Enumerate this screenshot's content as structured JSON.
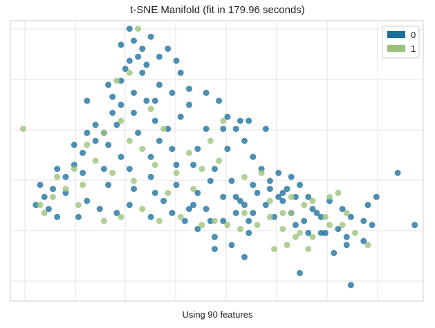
{
  "chart_data": {
    "type": "scatter",
    "title": "t-SNE Manifold (fit in 179.96 seconds)",
    "xlabel": "Using 90 features",
    "ylabel": "",
    "grid": true,
    "legend_position": "top-right",
    "xlim": [
      -53,
      44
    ],
    "ylim": [
      -30,
      40
    ],
    "tick_labels_visible": false,
    "series": [
      {
        "name": "0",
        "color": "#1a6f9c",
        "points": [
          [
            -25,
            38
          ],
          [
            -20,
            36
          ],
          [
            -24,
            35
          ],
          [
            -27,
            34
          ],
          [
            -22,
            33
          ],
          [
            -16,
            33
          ],
          [
            -23,
            31
          ],
          [
            -18,
            31
          ],
          [
            -25,
            30
          ],
          [
            -21,
            29
          ],
          [
            -14,
            30
          ],
          [
            -26,
            28
          ],
          [
            -13,
            27
          ],
          [
            -22,
            27
          ],
          [
            -30,
            24
          ],
          [
            -27,
            25
          ],
          [
            -18,
            24
          ],
          [
            -11,
            23
          ],
          [
            -15,
            22
          ],
          [
            -7,
            22
          ],
          [
            -35,
            20
          ],
          [
            -29,
            21
          ],
          [
            -24,
            22
          ],
          [
            -19,
            20
          ],
          [
            -11,
            19
          ],
          [
            -4,
            20
          ],
          [
            -2,
            16
          ],
          [
            -7,
            13
          ],
          [
            -3,
            13
          ],
          [
            -5,
            3
          ],
          [
            -2,
            8
          ],
          [
            -9,
            8
          ],
          [
            1,
            15
          ],
          [
            1,
            -5
          ],
          [
            -11,
            -7
          ],
          [
            -47,
            -6
          ],
          [
            -45,
            -4
          ],
          [
            -43,
            -2
          ],
          [
            -40,
            1
          ],
          [
            -38,
            4
          ],
          [
            -36,
            7
          ],
          [
            -33,
            10
          ],
          [
            -31,
            12
          ],
          [
            -33,
            14
          ],
          [
            -29,
            17
          ],
          [
            -27,
            19
          ],
          [
            -30,
            9
          ],
          [
            -36,
            2
          ],
          [
            -40,
            -3
          ],
          [
            -44,
            -7
          ],
          [
            -42,
            -9
          ],
          [
            -37,
            -9
          ],
          [
            -32,
            -7
          ],
          [
            -28,
            -8
          ],
          [
            -25,
            -6
          ],
          [
            -20,
            -9
          ],
          [
            -15,
            -8
          ],
          [
            -10,
            -6
          ],
          [
            -6,
            -10
          ],
          [
            -30,
            -1
          ],
          [
            -25,
            3
          ],
          [
            -20,
            6
          ],
          [
            -15,
            8
          ],
          [
            -10,
            4
          ],
          [
            -6,
            0
          ],
          [
            -3,
            -4
          ],
          [
            -24,
            -2
          ],
          [
            -19,
            -3
          ],
          [
            -14,
            -1
          ],
          [
            -9,
            -3
          ],
          [
            -35,
            -5
          ],
          [
            -27,
            6
          ],
          [
            -23,
            12
          ],
          [
            -19,
            15
          ],
          [
            -16,
            13
          ],
          [
            -13,
            16
          ],
          [
            -28,
            14
          ],
          [
            -24,
            17
          ],
          [
            -21,
            20
          ],
          [
            -35,
            12
          ],
          [
            -38,
            9
          ],
          [
            -42,
            3
          ],
          [
            -46,
            -1
          ],
          [
            -20,
            1
          ],
          [
            -17,
            -5
          ],
          [
            -12,
            -10
          ],
          [
            -7,
            -7
          ],
          [
            -3,
            -10
          ],
          [
            0,
            -8
          ],
          [
            3,
            -10
          ],
          [
            -18,
            10
          ],
          [
            -14,
            4
          ],
          [
            -31,
            3
          ],
          [
            0,
            -4
          ],
          [
            2,
            -6
          ],
          [
            4,
            -8
          ],
          [
            7,
            -6
          ],
          [
            9,
            -9
          ],
          [
            11,
            -5
          ],
          [
            13,
            -8
          ],
          [
            16,
            -10
          ],
          [
            18,
            -7
          ],
          [
            5,
            -3
          ],
          [
            8,
            -2
          ],
          [
            12,
            -2
          ],
          [
            10,
            -4
          ],
          [
            14,
            -4
          ],
          [
            17,
            -4
          ],
          [
            22,
            -5
          ],
          [
            25,
            -7
          ],
          [
            27,
            -9
          ],
          [
            30,
            -10
          ],
          [
            20,
            -9
          ],
          [
            -5,
            -14
          ],
          [
            -9,
            -12
          ],
          [
            3,
            -13
          ],
          [
            14,
            -11
          ],
          [
            17,
            -13
          ],
          [
            20,
            -13
          ],
          [
            24,
            -12
          ],
          [
            26,
            -14
          ],
          [
            30,
            -15
          ],
          [
            32,
            -11
          ],
          [
            23,
            -18
          ],
          [
            26,
            -16
          ],
          [
            19,
            -8
          ],
          [
            21,
            -13
          ],
          [
            2,
            10
          ],
          [
            4,
            6
          ],
          [
            6,
            3
          ],
          [
            8,
            0
          ],
          [
            0,
            13
          ],
          [
            3,
            15
          ],
          [
            7,
            13
          ],
          [
            10,
            2
          ],
          [
            13,
            1
          ],
          [
            15,
            -1
          ],
          [
            -5,
            -17
          ],
          [
            -1,
            -16
          ],
          [
            2,
            -19
          ],
          [
            31,
            -6
          ],
          [
            33,
            -4
          ],
          [
            42,
            -11
          ],
          [
            27,
            -26
          ],
          [
            38,
            2
          ],
          [
            15,
            -23
          ],
          [
            11,
            -3
          ],
          [
            4,
            -1
          ],
          [
            -1,
            0
          ]
        ]
      },
      {
        "name": "1",
        "color": "#9bc27a",
        "points": [
          [
            -23,
            38
          ],
          [
            -25,
            27
          ],
          [
            -28,
            25
          ],
          [
            -50,
            13
          ],
          [
            -46,
            -6
          ],
          [
            -43,
            -4
          ],
          [
            -40,
            -2
          ],
          [
            -37,
            -6
          ],
          [
            -31,
            -10
          ],
          [
            -27,
            -9
          ],
          [
            -22,
            -7
          ],
          [
            -18,
            -10
          ],
          [
            -13,
            -9
          ],
          [
            -8,
            -11
          ],
          [
            -5,
            -10
          ],
          [
            -2,
            -11
          ],
          [
            1,
            -12
          ],
          [
            5,
            -11
          ],
          [
            8,
            -9
          ],
          [
            11,
            -12
          ],
          [
            13,
            -8
          ],
          [
            16,
            -6
          ],
          [
            18,
            -5
          ],
          [
            21,
            -9
          ],
          [
            15,
            -13
          ],
          [
            -38,
            3
          ],
          [
            -33,
            5
          ],
          [
            -29,
            2
          ],
          [
            -24,
            0
          ],
          [
            -19,
            4
          ],
          [
            -14,
            2
          ],
          [
            -8,
            3
          ],
          [
            -4,
            5
          ],
          [
            -35,
            9
          ],
          [
            -31,
            12
          ],
          [
            -27,
            15
          ],
          [
            -22,
            8
          ],
          [
            -17,
            13
          ],
          [
            -11,
            7
          ],
          [
            -6,
            10
          ],
          [
            -3,
            15
          ],
          [
            2,
            -8
          ],
          [
            8,
            -5
          ],
          [
            11,
            -8
          ],
          [
            14,
            -14
          ],
          [
            18,
            -14
          ],
          [
            22,
            -11
          ],
          [
            25,
            -11
          ],
          [
            28,
            -13
          ],
          [
            31,
            -16
          ],
          [
            17,
            -17
          ],
          [
            12,
            -16
          ],
          [
            26,
            -8
          ],
          [
            24,
            -3
          ],
          [
            22,
            -4
          ],
          [
            -16,
            -3
          ],
          [
            -10,
            -2
          ],
          [
            -36,
            -1
          ],
          [
            -42,
            1
          ],
          [
            -45,
            -8
          ],
          [
            9,
            -17
          ],
          [
            13,
            -4
          ],
          [
            6,
            2
          ],
          [
            2,
            1
          ],
          [
            -25,
            10
          ],
          [
            -20,
            18
          ]
        ]
      }
    ]
  }
}
